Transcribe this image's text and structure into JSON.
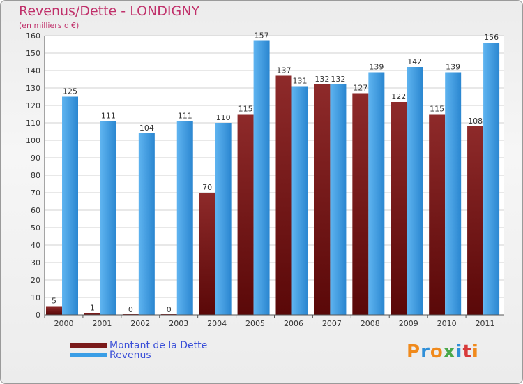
{
  "title": "Revenus/Dette - LONDIGNY",
  "subtitle": "(en milliers d'€)",
  "colors": {
    "dette": "#7a1a1a",
    "revenus": "#3a9ee6",
    "title": "#c0306a",
    "legend_text": "#3a4fd8"
  },
  "legend": {
    "dette": "Montant de la Dette",
    "revenus": "Revenus"
  },
  "logo": "Proxiti",
  "chart_data": {
    "type": "bar",
    "title": "Revenus/Dette - LONDIGNY",
    "ylabel": "(en milliers d'€)",
    "xlabel": "",
    "ylim": [
      0,
      160
    ],
    "ytick_step": 10,
    "grid": true,
    "legend_position": "bottom-left",
    "categories": [
      "2000",
      "2001",
      "2002",
      "2003",
      "2004",
      "2005",
      "2006",
      "2007",
      "2008",
      "2009",
      "2010",
      "2011"
    ],
    "series": [
      {
        "name": "Montant de la Dette",
        "values": [
          5,
          1,
          0,
          0,
          70,
          115,
          137,
          132,
          127,
          122,
          115,
          108
        ]
      },
      {
        "name": "Revenus",
        "values": [
          125,
          111,
          104,
          111,
          110,
          157,
          131,
          132,
          139,
          142,
          139,
          156
        ]
      }
    ]
  }
}
